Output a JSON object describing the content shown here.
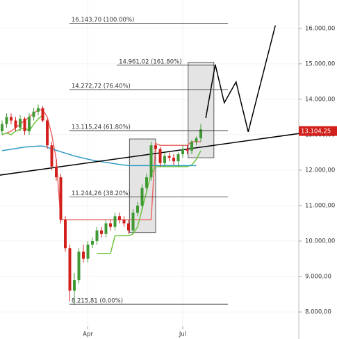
{
  "chart_data": {
    "type": "candlestick",
    "categories": [
      null,
      null,
      null,
      null,
      null,
      null,
      null,
      null,
      null,
      null,
      null,
      null,
      null,
      null,
      null,
      null,
      null,
      null,
      null,
      "Apr",
      null,
      null,
      null,
      null,
      null,
      null,
      null,
      null,
      null,
      null,
      null,
      null,
      null,
      null,
      null,
      null,
      null,
      null,
      null,
      null,
      "Jul",
      null,
      null,
      null,
      null
    ],
    "open": [
      13100,
      13300,
      13500,
      13400,
      13200,
      13450,
      13100,
      13500,
      13650,
      13750,
      13400,
      12700,
      12100,
      11800,
      10600,
      9800,
      8600,
      8900,
      9700,
      9500,
      9900,
      10000,
      10300,
      10200,
      10500,
      10400,
      10700,
      10600,
      10500,
      10300,
      10800,
      11000,
      11500,
      11800,
      12700,
      12600,
      12200,
      12400,
      12350,
      12250,
      12450,
      12600,
      12550,
      12800,
      12900
    ],
    "high": [
      13400,
      13600,
      13600,
      13500,
      13550,
      13500,
      13600,
      13750,
      13850,
      13800,
      13450,
      12800,
      12300,
      11900,
      10700,
      9900,
      9100,
      9800,
      9900,
      10000,
      10100,
      10400,
      10400,
      10600,
      10600,
      10800,
      10800,
      10700,
      10600,
      10900,
      11100,
      11600,
      11900,
      12800,
      12800,
      12650,
      12500,
      12500,
      12450,
      12500,
      12700,
      12700,
      12850,
      12950,
      13300
    ],
    "low": [
      13000,
      13200,
      13300,
      13100,
      13100,
      13000,
      13000,
      13400,
      13550,
      13350,
      12600,
      12000,
      11700,
      10500,
      9700,
      8300,
      8200,
      8800,
      9400,
      9400,
      9800,
      9900,
      10100,
      10100,
      10300,
      10300,
      10500,
      10400,
      10200,
      10200,
      10700,
      10900,
      11400,
      11700,
      12500,
      12100,
      12100,
      12250,
      12150,
      12100,
      12350,
      12450,
      12450,
      12700,
      12800
    ],
    "close": [
      13300,
      13500,
      13400,
      13200,
      13450,
      13100,
      13500,
      13650,
      13750,
      13400,
      12700,
      12100,
      11800,
      10600,
      9800,
      8600,
      8900,
      9700,
      9500,
      9900,
      10000,
      10300,
      10200,
      10500,
      10400,
      10700,
      10600,
      10500,
      10300,
      10800,
      11000,
      11500,
      11800,
      12700,
      12600,
      12200,
      12400,
      12350,
      12250,
      12450,
      12600,
      12550,
      12800,
      12900,
      13150
    ],
    "up_color": "#3f9a35",
    "down_color": "#d2201c",
    "series": [
      {
        "color": "#ec6a68",
        "values": [
          13000,
          13050,
          13100,
          13200,
          13300,
          13400,
          13500,
          13600,
          13700,
          13700,
          13500,
          13000,
          12300,
          10600,
          10600,
          10600,
          10600,
          10600,
          10600,
          10600,
          10600,
          10600,
          10600,
          10600,
          10600,
          10600,
          10600,
          10600,
          10600,
          10600,
          10600,
          10600,
          10600,
          10600,
          12750,
          12700,
          12700,
          12700,
          12700,
          12700,
          12700,
          12700,
          12800,
          12800,
          12800
        ]
      },
      {
        "color": "#6cc43e",
        "values": [
          13000,
          13050,
          13000,
          13100,
          13150,
          13200,
          13100,
          13300,
          13450,
          13550,
          null,
          null,
          null,
          null,
          null,
          null,
          null,
          null,
          null,
          null,
          null,
          9650,
          9650,
          9650,
          9650,
          10150,
          10150,
          10150,
          10150,
          10200,
          10400,
          10900,
          11400,
          11900,
          12100,
          12100,
          12100,
          12100,
          12100,
          12100,
          12100,
          12100,
          12150,
          12300,
          12550
        ]
      },
      {
        "color": "#2f9bc4",
        "values": [
          12550,
          12570,
          12590,
          12610,
          12630,
          12650,
          12660,
          12670,
          12680,
          12680,
          12650,
          12600,
          12560,
          12520,
          12480,
          12440,
          12400,
          12370,
          12340,
          12310,
          12280,
          12260,
          12240,
          12220,
          12200,
          12180,
          12160,
          12145,
          12130,
          12130,
          12130,
          12130,
          12130,
          12130,
          12130,
          12130,
          12130,
          12130,
          12130,
          12130,
          12130,
          12130,
          12130,
          12130,
          null
        ]
      }
    ],
    "trendline": {
      "x": [
        -0.5,
        74
      ],
      "values": [
        11860,
        13180
      ],
      "color": "#000000"
    },
    "projection": {
      "x": [
        45.1,
        47.2,
        49.2,
        51.8,
        54.5,
        60.5
      ],
      "values": [
        13470,
        14980,
        13900,
        14490,
        13080,
        16080
      ],
      "color": "#000000"
    },
    "levels": [
      {
        "value": 16143.7,
        "label": "16.143,70 (100.00%)",
        "x": [
          14.9,
          50
        ]
      },
      {
        "value": 14961.02,
        "label": "14.961,02 (161.80%)",
        "x": [
          25.4,
          46.9
        ]
      },
      {
        "value": 14272.72,
        "label": "14.272,72 (76.40%)",
        "x": [
          14.9,
          50
        ]
      },
      {
        "value": 13115.24,
        "label": "13.115,24 (61.80%)",
        "x": [
          14.9,
          50
        ]
      },
      {
        "value": 11244.26,
        "label": "11.244,26 (38.20%)",
        "x": [
          14.9,
          50
        ]
      },
      {
        "value": 8215.81,
        "label": "8.215,81 (0.00%)",
        "x": [
          14.9,
          50
        ]
      }
    ],
    "zones": [
      {
        "x": [
          28.2,
          34
        ],
        "y": [
          10240,
          12880
        ]
      },
      {
        "x": [
          41.2,
          46.9
        ],
        "y": [
          12350,
          15040
        ]
      }
    ],
    "last_price": {
      "value": 13104.25,
      "label": "13.104,25",
      "color": "#d2201c"
    },
    "ylim": [
      7590,
      16800
    ],
    "yticks": [
      {
        "value": 16000,
        "label": "16.000,00"
      },
      {
        "value": 15000,
        "label": "15.000,00"
      },
      {
        "value": 14000,
        "label": "14.000,00"
      },
      {
        "value": 13000,
        "label": "13.000,00"
      },
      {
        "value": 12000,
        "label": "12.000,00"
      },
      {
        "value": 11000,
        "label": "11.000,00"
      },
      {
        "value": 10000,
        "label": "10.000,00"
      },
      {
        "value": 9000,
        "label": "9.000,00"
      },
      {
        "value": 8000,
        "label": "8.000,00"
      }
    ],
    "grid": true
  }
}
